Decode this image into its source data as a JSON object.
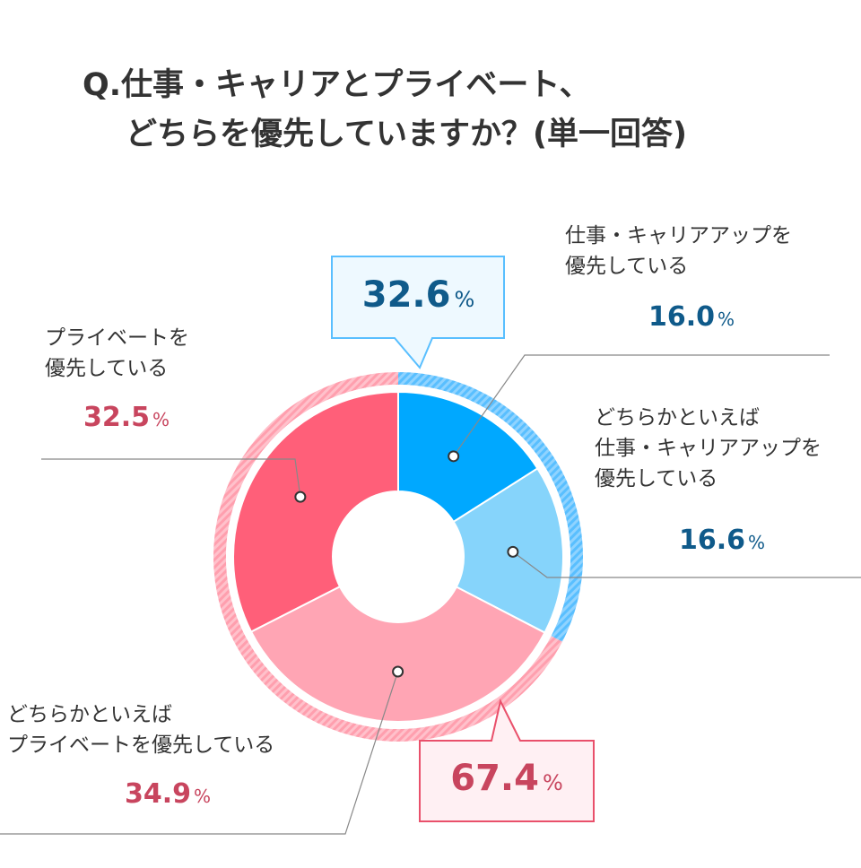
{
  "title_line1": "Q.仕事・キャリアとプライベート、",
  "title_line2": "どちらを優先していますか？(単一回答)",
  "chart_data": {
    "type": "pie",
    "variant": "donut",
    "slices": [
      {
        "label_lines": [
          "仕事・キャリアアップを",
          "優先している"
        ],
        "value": 16.0,
        "display": "16.0",
        "color": "#00a8ff",
        "group": "career"
      },
      {
        "label_lines": [
          "どちらかといえば",
          "仕事・キャリアアップを",
          "優先している"
        ],
        "value": 16.6,
        "display": "16.6",
        "color": "#86d4fb",
        "group": "career"
      },
      {
        "label_lines": [
          "どちらかといえば",
          "プライベートを優先している"
        ],
        "value": 34.9,
        "display": "34.9",
        "color": "#ffa5b4",
        "group": "private"
      },
      {
        "label_lines": [
          "プライベートを",
          "優先している"
        ],
        "value": 32.5,
        "display": "32.5",
        "color": "#ff5f79",
        "group": "private"
      }
    ],
    "groups": [
      {
        "id": "career",
        "total": "32.6",
        "ring_color": "#59bfff",
        "ring_stripe": "#9ad8ff",
        "text_color": "#0f5a8a"
      },
      {
        "id": "private",
        "total": "67.4",
        "ring_color": "#ff9fae",
        "ring_stripe": "#ffc6cf",
        "text_color": "#c8455e"
      }
    ],
    "unit": "%"
  }
}
